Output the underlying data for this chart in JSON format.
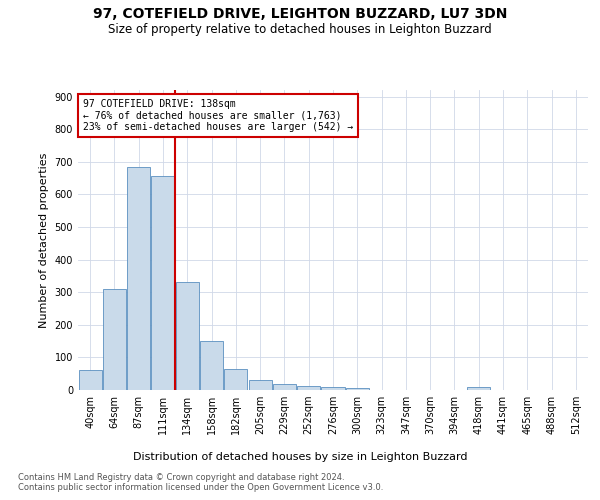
{
  "title_line1": "97, COTEFIELD DRIVE, LEIGHTON BUZZARD, LU7 3DN",
  "title_line2": "Size of property relative to detached houses in Leighton Buzzard",
  "xlabel": "Distribution of detached houses by size in Leighton Buzzard",
  "ylabel": "Number of detached properties",
  "footer": "Contains HM Land Registry data © Crown copyright and database right 2024.\nContains public sector information licensed under the Open Government Licence v3.0.",
  "bin_labels": [
    "40sqm",
    "64sqm",
    "87sqm",
    "111sqm",
    "134sqm",
    "158sqm",
    "182sqm",
    "205sqm",
    "229sqm",
    "252sqm",
    "276sqm",
    "300sqm",
    "323sqm",
    "347sqm",
    "370sqm",
    "394sqm",
    "418sqm",
    "441sqm",
    "465sqm",
    "488sqm",
    "512sqm"
  ],
  "bar_values": [
    60,
    310,
    685,
    655,
    330,
    150,
    65,
    30,
    18,
    12,
    8,
    6,
    0,
    0,
    0,
    0,
    8,
    0,
    0,
    0,
    0
  ],
  "bar_color": "#c9daea",
  "bar_edge_color": "#5a8fc0",
  "vline_x": 3.5,
  "vline_color": "#cc0000",
  "annotation_text": "97 COTEFIELD DRIVE: 138sqm\n← 76% of detached houses are smaller (1,763)\n23% of semi-detached houses are larger (542) →",
  "annotation_box_color": "#cc0000",
  "ylim": [
    0,
    920
  ],
  "yticks": [
    0,
    100,
    200,
    300,
    400,
    500,
    600,
    700,
    800,
    900
  ],
  "grid_color": "#d0d8e8",
  "title_fontsize": 10,
  "subtitle_fontsize": 8.5,
  "axis_label_fontsize": 8,
  "tick_fontsize": 7,
  "annotation_fontsize": 7,
  "footer_fontsize": 6
}
